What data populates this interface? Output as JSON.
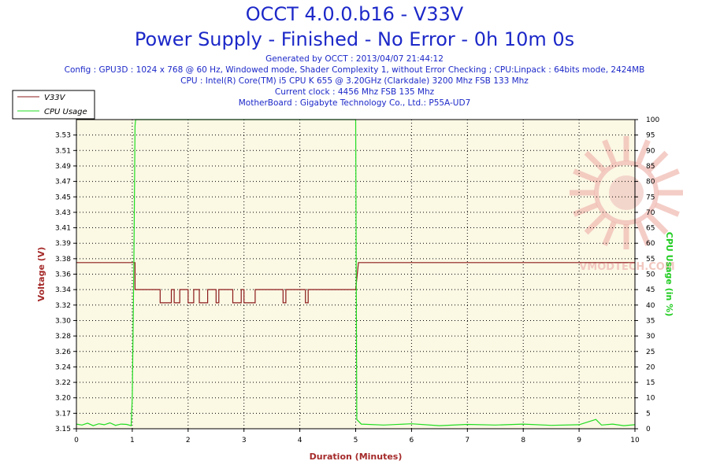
{
  "header": {
    "title": "OCCT 4.0.0.b16 - V33V",
    "subtitle": "Power Supply - Finished - No Error - 0h 10m 0s",
    "info_lines": [
      "Generated by OCCT : 2013/04/07 21:44:12",
      "Config : GPU3D : 1024 x 768 @ 60 Hz, Windowed mode, Shader Complexity 1, without Error Checking ; CPU:Linpack : 64bits mode, 2424MB",
      "CPU : Intel(R) Core(TM) i5 CPU K 655 @ 3.20GHz (Clarkdale) 3200 Mhz FSB 133 Mhz",
      "Current clock : 4456 Mhz FSB 135 Mhz",
      "MotherBoard : Gigabyte Technology Co., Ltd.: P55A-UD7"
    ]
  },
  "watermark": {
    "text": "VMODTECH.COM"
  },
  "colors": {
    "voltage": "#8b1a1a",
    "cpu": "#22dd22",
    "plot_bg": "#fbf8e4",
    "grid": "#000000",
    "left_axis_title": "#a52a2a",
    "right_axis_title": "#22cc22"
  },
  "chart_data": {
    "type": "line",
    "xlabel": "Duration (Minutes)",
    "ylabel": "Voltage (V)",
    "y2label": "CPU Usage (in %)",
    "xlim": [
      0,
      10
    ],
    "ylim": [
      3.15,
      3.55
    ],
    "y2lim": [
      0,
      100
    ],
    "x_ticks": [
      "0",
      "1",
      "2",
      "3",
      "4",
      "5",
      "6",
      "7",
      "8",
      "9",
      "10"
    ],
    "y_ticks": [
      "3.15",
      "3.17",
      "3.20",
      "3.22",
      "3.24",
      "3.26",
      "3.28",
      "3.30",
      "3.32",
      "3.34",
      "3.36",
      "3.38",
      "3.39",
      "3.41",
      "3.43",
      "3.45",
      "3.47",
      "3.49",
      "3.51",
      "3.53"
    ],
    "y2_ticks": [
      "0",
      "5",
      "10",
      "15",
      "20",
      "25",
      "30",
      "35",
      "40",
      "45",
      "50",
      "55",
      "60",
      "65",
      "70",
      "75",
      "80",
      "85",
      "90",
      "95",
      "100"
    ],
    "grid": true,
    "legend_position": "top-left",
    "series": [
      {
        "name": "V33V",
        "axis": "left",
        "x": [
          0,
          1.05,
          1.05,
          1.1,
          1.5,
          1.5,
          1.7,
          1.7,
          1.75,
          1.75,
          1.85,
          1.85,
          2.0,
          2.0,
          2.1,
          2.1,
          2.2,
          2.2,
          2.35,
          2.35,
          2.5,
          2.5,
          2.55,
          2.55,
          2.8,
          2.8,
          2.95,
          2.95,
          3.0,
          3.0,
          3.2,
          3.2,
          3.7,
          3.7,
          3.75,
          3.75,
          4.1,
          4.1,
          4.15,
          4.15,
          5.0,
          5.05,
          10
        ],
        "y": [
          3.365,
          3.365,
          3.33,
          3.33,
          3.33,
          3.313,
          3.313,
          3.33,
          3.33,
          3.313,
          3.313,
          3.33,
          3.33,
          3.313,
          3.313,
          3.33,
          3.33,
          3.313,
          3.313,
          3.33,
          3.33,
          3.313,
          3.313,
          3.33,
          3.33,
          3.313,
          3.313,
          3.33,
          3.33,
          3.313,
          3.313,
          3.33,
          3.33,
          3.313,
          3.313,
          3.33,
          3.33,
          3.313,
          3.313,
          3.33,
          3.33,
          3.365,
          3.365
        ]
      },
      {
        "name": "CPU Usage",
        "axis": "right",
        "x": [
          0,
          0.1,
          0.2,
          0.3,
          0.4,
          0.5,
          0.6,
          0.7,
          0.8,
          0.9,
          0.98,
          1.0,
          1.03,
          1.05,
          1.06,
          2,
          3,
          4,
          4.98,
          4.99,
          5.0,
          5.02,
          5.1,
          5.5,
          6.0,
          6.5,
          7.0,
          7.5,
          8.0,
          8.5,
          9.0,
          9.3,
          9.4,
          9.6,
          9.8,
          10
        ],
        "y": [
          1.5,
          1.2,
          1.8,
          1.0,
          1.6,
          1.3,
          1.9,
          1.1,
          1.5,
          1.4,
          1.0,
          10,
          55,
          98,
          100,
          100,
          100,
          100,
          100,
          100,
          100,
          3,
          1.5,
          1.2,
          1.6,
          1.0,
          1.4,
          1.2,
          1.5,
          1.1,
          1.3,
          3,
          1.2,
          1.5,
          1.0,
          1.3
        ]
      }
    ]
  }
}
